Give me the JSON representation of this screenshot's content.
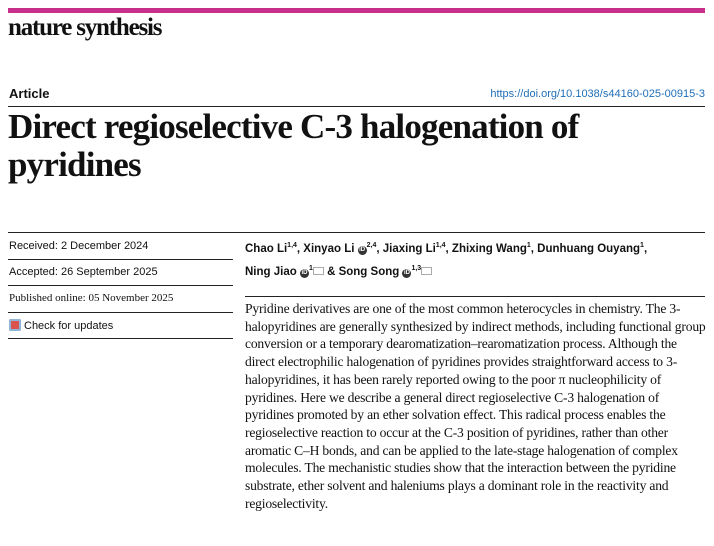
{
  "journal": "nature synthesis",
  "article_type": "Article",
  "doi": "https://doi.org/10.1038/s44160-025-00915-3",
  "title": "Direct regioselective C-3 halogenation of pyridines",
  "received": "Received: 2 December 2024",
  "accepted": "Accepted: 26 September 2025",
  "published": "Published online: 05 November 2025",
  "check_updates": "Check for updates",
  "authors": [
    {
      "name": "Chao Li",
      "aff": "1,4"
    },
    {
      "name": "Xinyao Li",
      "aff": "2,4",
      "orcid": true
    },
    {
      "name": "Jiaxing Li",
      "aff": "1,4"
    },
    {
      "name": "Zhixing Wang",
      "aff": "1"
    },
    {
      "name": "Dunhuang Ouyang",
      "aff": "1"
    },
    {
      "name": "Ning Jiao",
      "aff": "1",
      "orcid": true,
      "corresponding": true
    },
    {
      "name": "Song Song",
      "aff": "1,3",
      "orcid": true,
      "corresponding": true
    }
  ],
  "abstract": "Pyridine derivatives are one of the most common heterocycles in chemistry. The 3-halopyridines are generally synthesized by indirect methods, including functional group conversion or a temporary dearomatization–rearomatization process. Although the direct electrophilic halogenation of pyridines provides straightforward access to 3-halopyridines, it has been rarely reported owing to the poor π nucleophilicity of pyridines. Here we describe a general direct regioselective C-3 halogenation of pyridines promoted by an ether solvation effect. This radical process enables the regioselective reaction to occur at the C-3 position of pyridines, rather than other aromatic C–H bonds, and can be applied to the late-stage halogenation of complex molecules. The mechanistic studies show that the interaction between the pyridine substrate, ether solvent and haleniums plays a dominant role in the reactivity and regioselectivity.",
  "colors": {
    "accent": "#c72f8a",
    "link": "#1f6fb8"
  }
}
